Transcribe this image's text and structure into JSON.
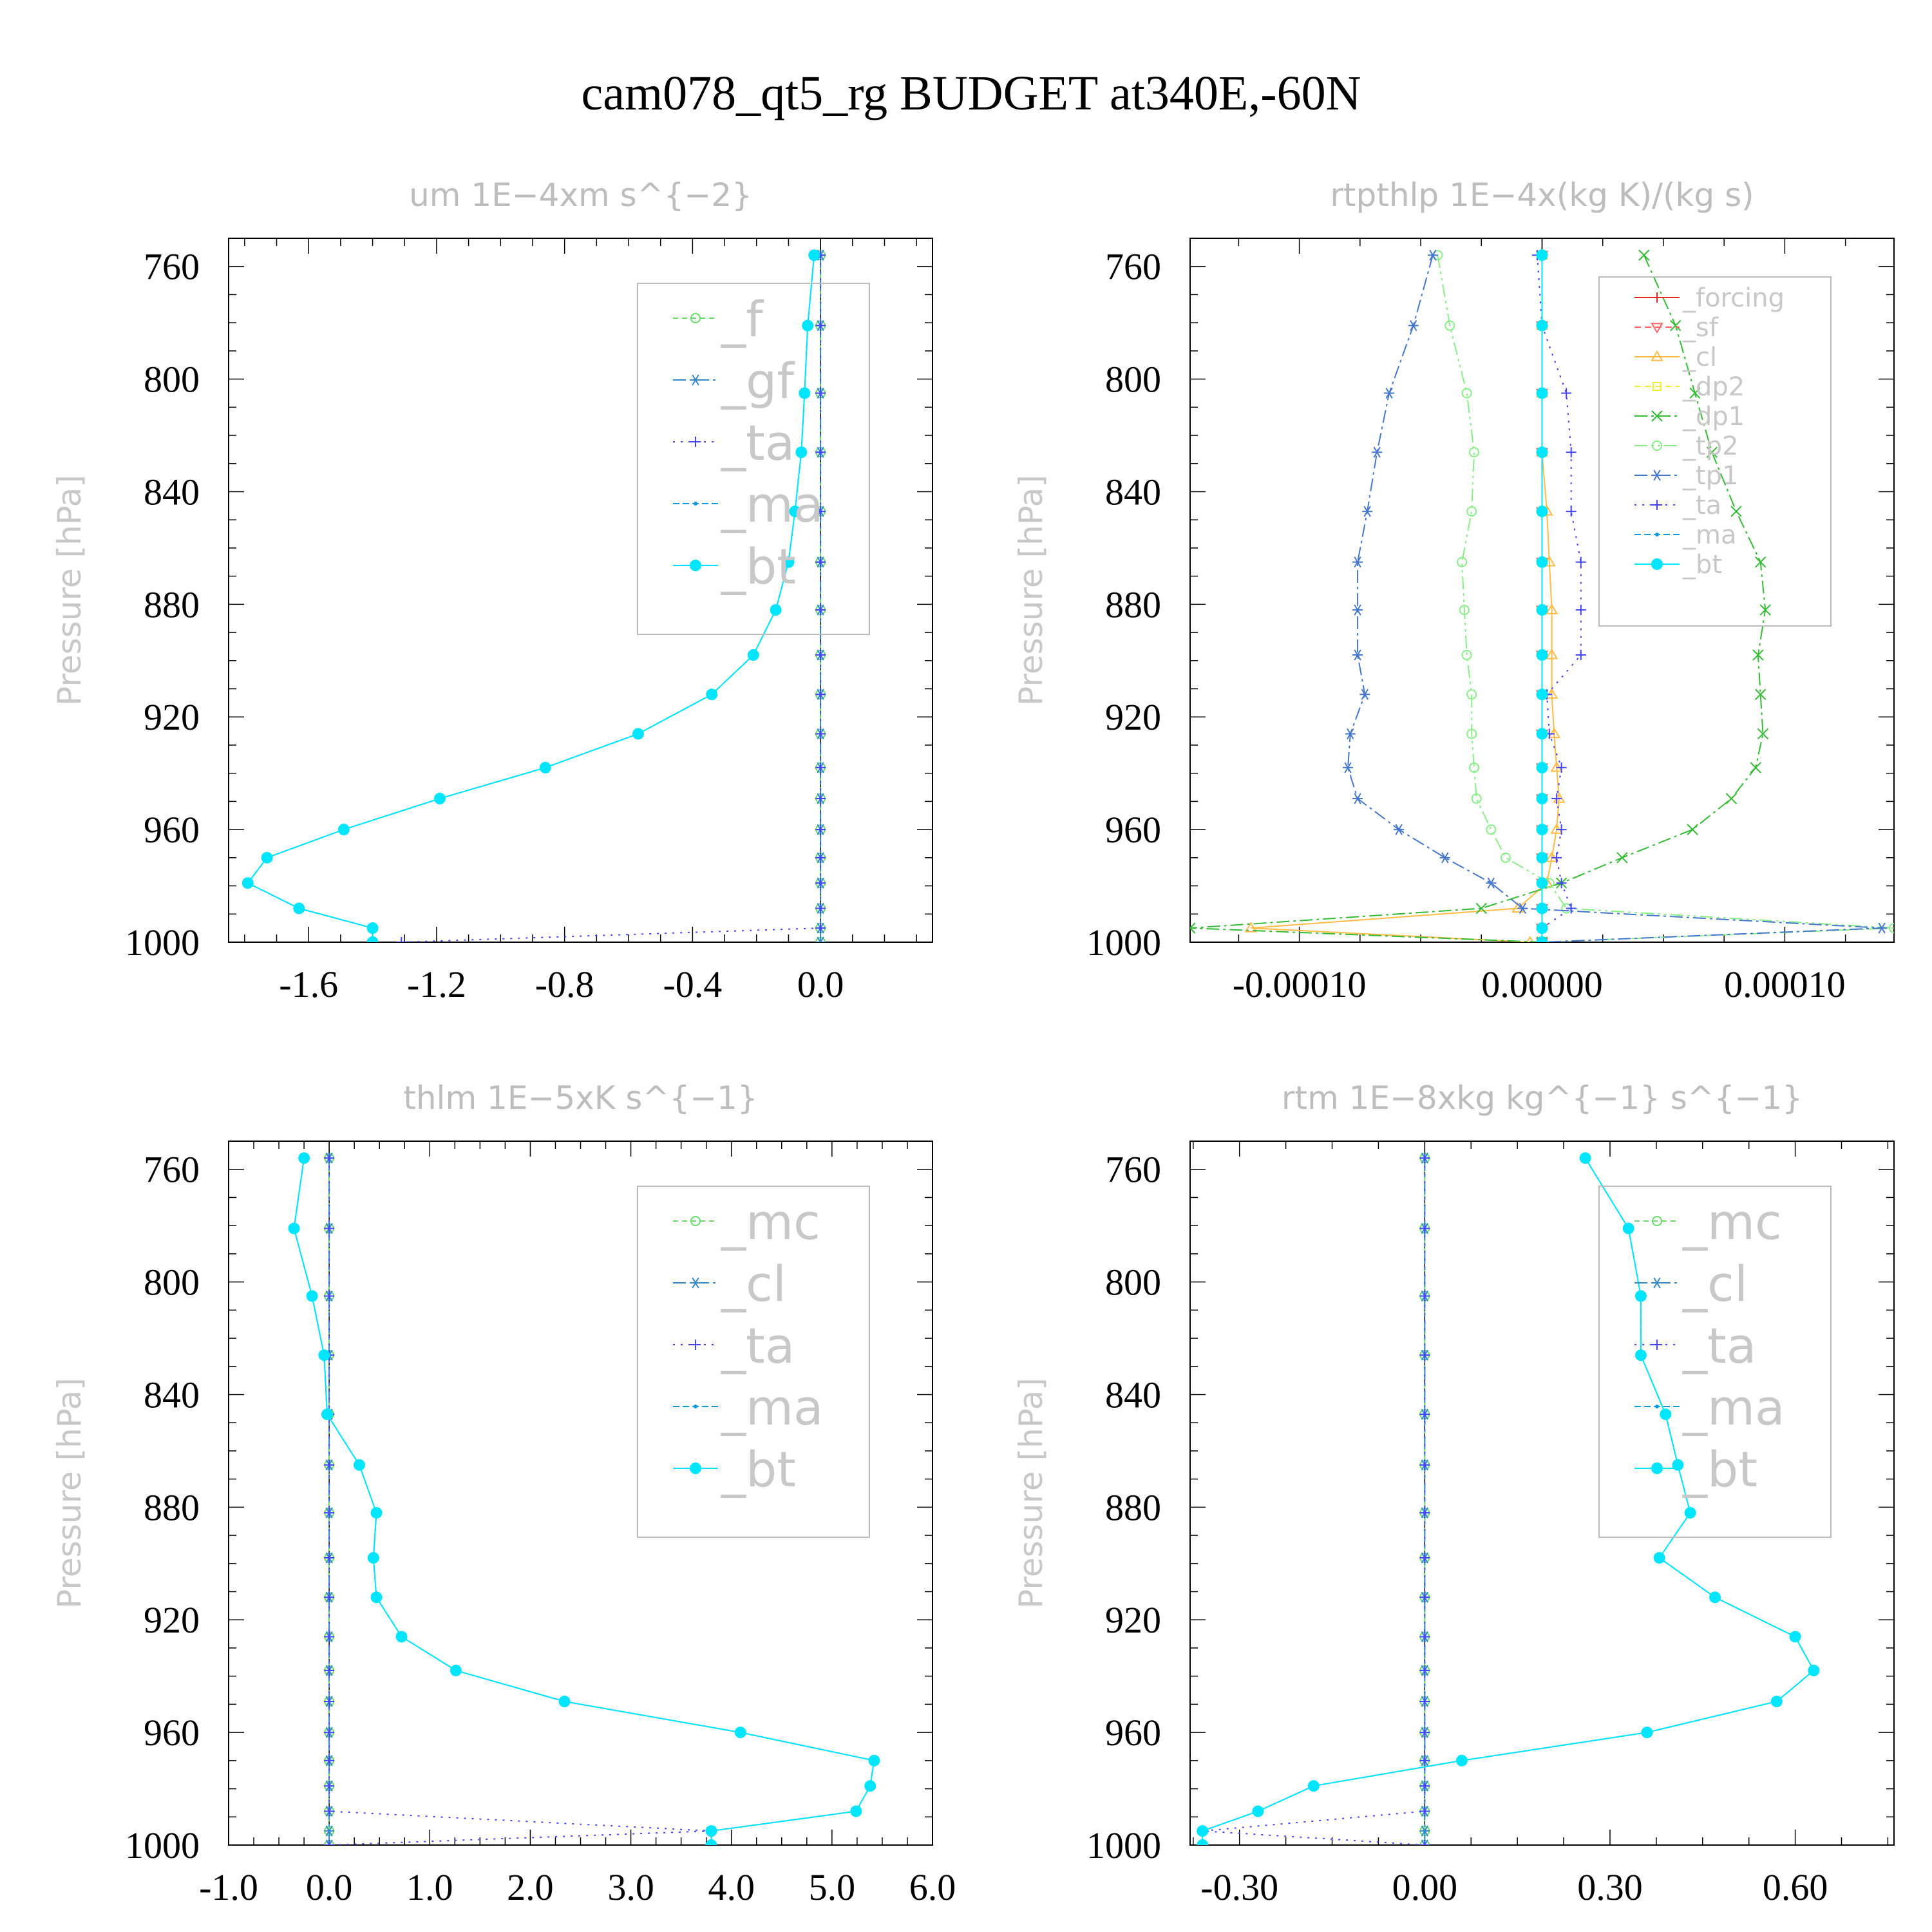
{
  "title": "cam078_qt5_rg  BUDGET at340E,-60N",
  "colors": {
    "f": "#66dd66",
    "gf": "#3388cc",
    "ta": "#4444ff",
    "ma": "#1199dd",
    "bt": "#00e5ff",
    "forcing": "#ee2222",
    "sf": "#ff6666",
    "cl": "#ffbb44",
    "dp2": "#eeee33",
    "dp1": "#33bb33",
    "tp2": "#88ee88",
    "tp1": "#4477cc",
    "mc": "#66dd66",
    "cl_b": "#3388cc"
  },
  "chart_data": [
    {
      "type": "line",
      "title": "um   1E−4xm s^{−2}",
      "ylabel": "Pressure [hPa]",
      "ylim": [
        1000,
        750
      ],
      "yticks": [
        760,
        800,
        840,
        880,
        920,
        960,
        1000
      ],
      "xlim": [
        -1.85,
        0.35
      ],
      "xticks": [
        -1.6,
        -1.2,
        -0.8,
        -0.4,
        0.0
      ],
      "xticklabels": [
        "-1.6",
        "-1.2",
        "-0.8",
        "-0.4",
        "0.0"
      ],
      "legend_position": "top-right",
      "legend_style": "big",
      "levels": [
        756,
        781,
        805,
        826,
        847,
        865,
        882,
        898,
        912,
        926,
        938,
        949,
        960,
        970,
        979,
        988,
        995,
        1000
      ],
      "series": [
        {
          "name": "_f",
          "key": "f",
          "marker": "circle-open",
          "dash": "8 6",
          "values": [
            0,
            0,
            0,
            0,
            0,
            0,
            0,
            0,
            0,
            0,
            0,
            0,
            0,
            0,
            0,
            0,
            0,
            0
          ]
        },
        {
          "name": "_gf",
          "key": "gf",
          "marker": "star",
          "dash": "20 6 4 6",
          "values": [
            0,
            0,
            0,
            0,
            0,
            0,
            0,
            0,
            0,
            0,
            0,
            0,
            0,
            0,
            0,
            0,
            0,
            0
          ]
        },
        {
          "name": "_ta",
          "key": "ta",
          "marker": "plus",
          "dash": "3 9",
          "values": [
            0,
            0,
            0,
            0,
            0,
            0,
            0,
            0,
            0,
            0,
            0,
            0,
            0,
            0,
            0,
            0,
            0.0,
            -1.31
          ]
        },
        {
          "name": "_ma",
          "key": "ma",
          "marker": "dot",
          "dash": "10 5",
          "values": [
            -0.02,
            -0.04,
            -0.05,
            -0.06,
            -0.08,
            -0.1,
            -0.14,
            -0.21,
            -0.34,
            -0.57,
            -0.86,
            -1.19,
            -1.49,
            -1.73,
            -1.79,
            -1.63,
            -1.4,
            -1.4
          ]
        },
        {
          "name": "_bt",
          "key": "bt",
          "marker": "dot-filled",
          "dash": "",
          "values": [
            -0.02,
            -0.04,
            -0.05,
            -0.06,
            -0.08,
            -0.1,
            -0.14,
            -0.21,
            -0.34,
            -0.57,
            -0.86,
            -1.19,
            -1.49,
            -1.73,
            -1.79,
            -1.63,
            -1.4,
            -1.4
          ]
        }
      ]
    },
    {
      "type": "line",
      "title": "rtpthlp   1E−4x(kg K)/(kg s)",
      "ylabel": "Pressure [hPa]",
      "ylim": [
        1000,
        750
      ],
      "yticks": [
        760,
        800,
        840,
        880,
        920,
        960,
        1000
      ],
      "xlim": [
        -0.000145,
        0.000145
      ],
      "xticks": [
        -0.0001,
        0.0,
        0.0001
      ],
      "xticklabels": [
        "-0.00010",
        "0.00000",
        "0.00010"
      ],
      "legend_position": "top-right",
      "legend_style": "small",
      "levels": [
        756,
        781,
        805,
        826,
        847,
        865,
        882,
        898,
        912,
        926,
        938,
        949,
        960,
        970,
        979,
        988,
        995,
        1000
      ],
      "series": [
        {
          "name": "_forcing",
          "key": "forcing",
          "marker": "plus",
          "dash": "",
          "values": [
            0,
            0,
            0,
            0,
            0,
            0,
            0,
            0,
            0,
            0,
            0,
            0,
            0,
            0,
            0,
            0,
            0,
            0
          ]
        },
        {
          "name": "_sf",
          "key": "sf",
          "marker": "tri-down",
          "dash": "10 6",
          "values": [
            0,
            0,
            0,
            0,
            0,
            0,
            0,
            0,
            0,
            0,
            0,
            0,
            0,
            0,
            0,
            0,
            0,
            0
          ]
        },
        {
          "name": "_cl",
          "key": "cl",
          "marker": "tri-up",
          "dash": "",
          "values": [
            0,
            0,
            0,
            0,
            2e-06,
            3e-06,
            4e-06,
            4e-06,
            4e-06,
            5e-06,
            6e-06,
            7e-06,
            6e-06,
            4e-06,
            2e-06,
            -1e-05,
            -0.00012,
            -5e-06
          ]
        },
        {
          "name": "_dp2",
          "key": "dp2",
          "marker": "square",
          "dash": "10 6",
          "values": [
            0,
            0,
            0,
            0,
            0,
            0,
            0,
            0,
            0,
            0,
            0,
            0,
            0,
            0,
            0,
            0,
            0,
            0
          ]
        },
        {
          "name": "_dp1",
          "key": "dp1",
          "marker": "x",
          "dash": "20 6 4 6",
          "values": [
            4.2e-05,
            5.5e-05,
            6.3e-05,
            7e-05,
            8e-05,
            9e-05,
            9.2e-05,
            8.9e-05,
            9e-05,
            9.1e-05,
            8.8e-05,
            7.8e-05,
            6.2e-05,
            3.3e-05,
            8e-06,
            -2.5e-05,
            -0.000145,
            0.0
          ]
        },
        {
          "name": "_tp2",
          "key": "tp2",
          "marker": "circle-open",
          "dash": "20 6 4 6 4 6",
          "values": [
            -4.3e-05,
            -3.8e-05,
            -3.1e-05,
            -2.8e-05,
            -2.9e-05,
            -3.3e-05,
            -3.2e-05,
            -3.1e-05,
            -2.9e-05,
            -2.9e-05,
            -2.8e-05,
            -2.7e-05,
            -2.1e-05,
            -1.5e-05,
            3e-06,
            1e-05,
            0.000145,
            0.0
          ]
        },
        {
          "name": "_tp1",
          "key": "tp1",
          "marker": "star",
          "dash": "20 6 4 6",
          "values": [
            -4.5e-05,
            -5.3e-05,
            -6.3e-05,
            -6.8e-05,
            -7.2e-05,
            -7.6e-05,
            -7.6e-05,
            -7.6e-05,
            -7.3e-05,
            -7.9e-05,
            -8e-05,
            -7.6e-05,
            -5.9e-05,
            -4e-05,
            -2.1e-05,
            -8e-06,
            0.00014,
            0.0
          ]
        },
        {
          "name": "_ta",
          "key": "ta",
          "marker": "plus",
          "dash": "3 9",
          "values": [
            -2e-06,
            0.0,
            1e-05,
            1.2e-05,
            1.2e-05,
            1.6e-05,
            1.6e-05,
            1.6e-05,
            2e-06,
            3e-06,
            8e-06,
            6e-06,
            8e-06,
            6e-06,
            8e-06,
            1.2e-05,
            0.0,
            0.0
          ]
        },
        {
          "name": "_ma",
          "key": "ma",
          "marker": "dot",
          "dash": "10 5",
          "values": [
            0,
            0,
            0,
            0,
            0,
            0,
            0,
            0,
            0,
            0,
            0,
            0,
            0,
            0,
            0,
            0,
            0,
            0
          ]
        },
        {
          "name": "_bt",
          "key": "bt",
          "marker": "dot-filled",
          "dash": "",
          "values": [
            0,
            0,
            0,
            0,
            0,
            0,
            0,
            0,
            0,
            0,
            0,
            0,
            0,
            0,
            0,
            0,
            0,
            0
          ]
        }
      ]
    },
    {
      "type": "line",
      "title": "thlm   1E−5xK s^{−1}",
      "ylabel": "Pressure [hPa]",
      "ylim": [
        1000,
        750
      ],
      "yticks": [
        760,
        800,
        840,
        880,
        920,
        960,
        1000
      ],
      "xlim": [
        -1.0,
        6.0
      ],
      "xticks": [
        -1.0,
        0.0,
        1.0,
        2.0,
        3.0,
        4.0,
        5.0,
        6.0
      ],
      "xticklabels": [
        "-1.0",
        "0.0",
        "1.0",
        "2.0",
        "3.0",
        "4.0",
        "5.0",
        "6.0"
      ],
      "legend_position": "top-right",
      "legend_style": "big",
      "levels": [
        756,
        781,
        805,
        826,
        847,
        865,
        882,
        898,
        912,
        926,
        938,
        949,
        960,
        970,
        979,
        988,
        995,
        1000
      ],
      "series": [
        {
          "name": "_mc",
          "key": "mc",
          "marker": "circle-open",
          "dash": "8 6",
          "values": [
            0,
            0,
            0,
            0,
            0,
            0,
            0,
            0,
            0,
            0,
            0,
            0,
            0,
            0,
            0,
            0,
            0,
            0
          ]
        },
        {
          "name": "_cl",
          "key": "cl_b",
          "marker": "star",
          "dash": "20 6 4 6",
          "values": [
            0,
            0,
            0,
            0,
            0,
            0,
            0,
            0,
            0,
            0,
            0,
            0,
            0,
            0,
            0,
            0,
            0,
            0
          ]
        },
        {
          "name": "_ta",
          "key": "ta",
          "marker": "plus",
          "dash": "3 9",
          "values": [
            0,
            0,
            0,
            0,
            0,
            0,
            0,
            0,
            0,
            0,
            0,
            0,
            0,
            0,
            0,
            0,
            3.8,
            0.0
          ]
        },
        {
          "name": "_ma",
          "key": "ma",
          "marker": "dot",
          "dash": "10 5",
          "values": [
            -0.25,
            -0.35,
            -0.17,
            -0.05,
            -0.02,
            0.3,
            0.47,
            0.44,
            0.47,
            0.72,
            1.26,
            2.34,
            4.09,
            5.42,
            5.38,
            5.24,
            3.8,
            3.8
          ]
        },
        {
          "name": "_bt",
          "key": "bt",
          "marker": "dot-filled",
          "dash": "",
          "values": [
            -0.25,
            -0.35,
            -0.17,
            -0.05,
            -0.02,
            0.3,
            0.47,
            0.44,
            0.47,
            0.72,
            1.26,
            2.34,
            4.09,
            5.42,
            5.38,
            5.24,
            3.8,
            3.8
          ]
        }
      ]
    },
    {
      "type": "line",
      "title": "rtm   1E−8xkg kg^{−1} s^{−1}",
      "ylabel": "Pressure [hPa]",
      "ylim": [
        1000,
        750
      ],
      "yticks": [
        760,
        800,
        840,
        880,
        920,
        960,
        1000
      ],
      "xlim": [
        -0.38,
        0.76
      ],
      "xticks": [
        -0.3,
        0.0,
        0.3,
        0.6
      ],
      "xticklabels": [
        "-0.30",
        "0.00",
        "0.30",
        "0.60"
      ],
      "legend_position": "top-right",
      "legend_style": "big",
      "levels": [
        756,
        781,
        805,
        826,
        847,
        865,
        882,
        898,
        912,
        926,
        938,
        949,
        960,
        970,
        979,
        988,
        995,
        1000
      ],
      "series": [
        {
          "name": "_mc",
          "key": "mc",
          "marker": "circle-open",
          "dash": "8 6",
          "values": [
            0,
            0,
            0,
            0,
            0,
            0,
            0,
            0,
            0,
            0,
            0,
            0,
            0,
            0,
            0,
            0,
            0,
            0
          ]
        },
        {
          "name": "_cl",
          "key": "cl_b",
          "marker": "star",
          "dash": "20 6 4 6",
          "values": [
            0,
            0,
            0,
            0,
            0,
            0,
            0,
            0,
            0,
            0,
            0,
            0,
            0,
            0,
            0,
            0,
            0,
            0
          ]
        },
        {
          "name": "_ta",
          "key": "ta",
          "marker": "plus",
          "dash": "3 9",
          "values": [
            0,
            0,
            0,
            0,
            0,
            0,
            0,
            0,
            0,
            0,
            0,
            0,
            0,
            0,
            0,
            0,
            -0.36,
            0.0
          ]
        },
        {
          "name": "_ma",
          "key": "ma",
          "marker": "dot",
          "dash": "10 5",
          "values": [
            0.26,
            0.33,
            0.35,
            0.35,
            0.39,
            0.41,
            0.43,
            0.38,
            0.47,
            0.6,
            0.63,
            0.57,
            0.36,
            0.06,
            -0.18,
            -0.27,
            -0.36,
            -0.36
          ]
        },
        {
          "name": "_bt",
          "key": "bt",
          "marker": "dot-filled",
          "dash": "",
          "values": [
            0.26,
            0.33,
            0.35,
            0.35,
            0.39,
            0.41,
            0.43,
            0.38,
            0.47,
            0.6,
            0.63,
            0.57,
            0.36,
            0.06,
            -0.18,
            -0.27,
            -0.36,
            -0.36
          ]
        }
      ]
    }
  ]
}
